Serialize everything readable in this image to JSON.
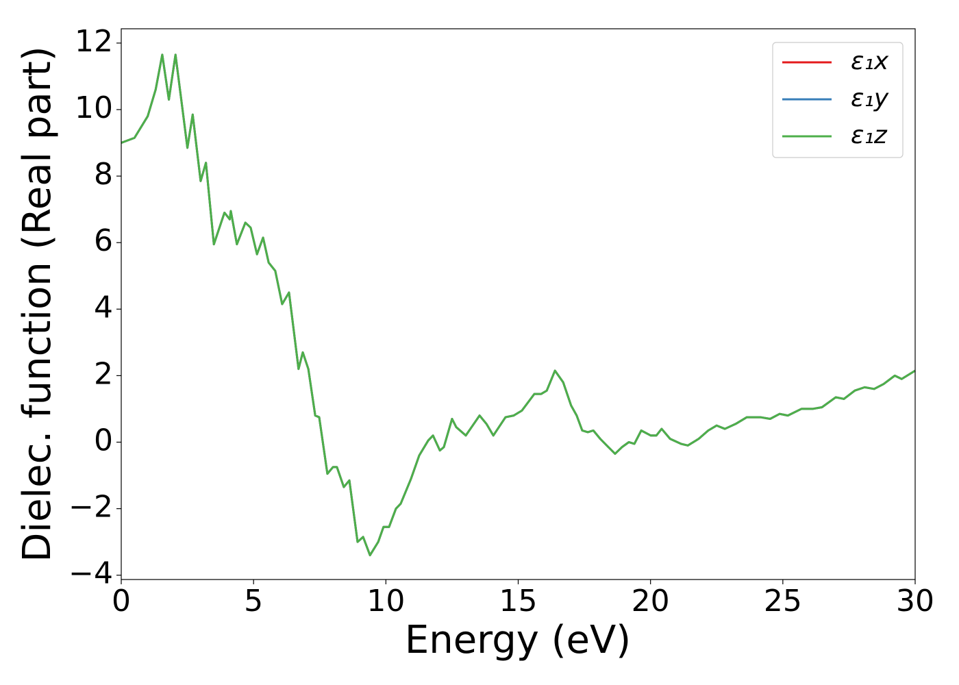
{
  "chart_data": {
    "type": "line",
    "xlabel": "Energy (eV)",
    "ylabel": "Dielec. function (Real part)",
    "x": [
      0,
      0.5,
      1.0,
      1.3,
      1.55,
      1.8,
      2.05,
      2.3,
      2.5,
      2.7,
      3.0,
      3.2,
      3.5,
      3.9,
      4.1,
      4.14,
      4.37,
      4.69,
      4.89,
      5.13,
      5.36,
      5.57,
      5.82,
      6.08,
      6.34,
      6.7,
      6.86,
      7.07,
      7.33,
      7.48,
      7.79,
      8.0,
      8.15,
      8.41,
      8.62,
      8.93,
      9.14,
      9.4,
      9.71,
      9.91,
      10.12,
      10.38,
      10.56,
      10.95,
      11.26,
      11.6,
      11.78,
      12.04,
      12.19,
      12.5,
      12.66,
      13.02,
      13.28,
      13.54,
      13.8,
      14.06,
      14.52,
      14.83,
      15.14,
      15.61,
      15.87,
      16.08,
      16.39,
      16.7,
      17.0,
      17.21,
      17.42,
      17.63,
      17.84,
      18.1,
      18.41,
      18.66,
      18.92,
      19.18,
      19.39,
      19.65,
      20.01,
      20.22,
      20.42,
      20.74,
      21.15,
      21.41,
      21.82,
      22.18,
      22.5,
      22.81,
      23.22,
      23.64,
      24.15,
      24.52,
      24.88,
      25.19,
      25.7,
      26.12,
      26.48,
      27.0,
      27.31,
      27.72,
      28.09,
      28.45,
      28.81,
      29.23,
      29.49,
      30
    ],
    "series": [
      {
        "name": "ε₁x",
        "color": "#e41a1c",
        "values": [
          9.0,
          9.15,
          9.8,
          10.6,
          11.65,
          10.3,
          11.65,
          10.1,
          8.85,
          9.85,
          7.85,
          8.4,
          5.95,
          6.9,
          6.7,
          6.95,
          5.95,
          6.6,
          6.45,
          5.65,
          6.15,
          5.4,
          5.15,
          4.15,
          4.5,
          2.2,
          2.7,
          2.2,
          0.8,
          0.75,
          -0.95,
          -0.75,
          -0.75,
          -1.35,
          -1.15,
          -3.0,
          -2.85,
          -3.4,
          -3.0,
          -2.55,
          -2.55,
          -2.0,
          -1.85,
          -1.1,
          -0.4,
          0.05,
          0.2,
          -0.25,
          -0.15,
          0.7,
          0.45,
          0.2,
          0.5,
          0.8,
          0.55,
          0.2,
          0.75,
          0.8,
          0.95,
          1.45,
          1.45,
          1.55,
          2.15,
          1.8,
          1.1,
          0.8,
          0.35,
          0.3,
          0.35,
          0.1,
          -0.15,
          -0.35,
          -0.15,
          0.0,
          -0.05,
          0.35,
          0.2,
          0.2,
          0.4,
          0.1,
          -0.05,
          -0.1,
          0.1,
          0.35,
          0.5,
          0.4,
          0.55,
          0.75,
          0.75,
          0.7,
          0.85,
          0.8,
          1.0,
          1.0,
          1.05,
          1.35,
          1.3,
          1.55,
          1.65,
          1.6,
          1.75,
          2.0,
          1.9,
          2.15
        ]
      },
      {
        "name": "ε₁y",
        "color": "#377eb8",
        "values": [
          9.0,
          9.15,
          9.8,
          10.6,
          11.65,
          10.3,
          11.65,
          10.1,
          8.85,
          9.85,
          7.85,
          8.4,
          5.95,
          6.9,
          6.7,
          6.95,
          5.95,
          6.6,
          6.45,
          5.65,
          6.15,
          5.4,
          5.15,
          4.15,
          4.5,
          2.2,
          2.7,
          2.2,
          0.8,
          0.75,
          -0.95,
          -0.75,
          -0.75,
          -1.35,
          -1.15,
          -3.0,
          -2.85,
          -3.4,
          -3.0,
          -2.55,
          -2.55,
          -2.0,
          -1.85,
          -1.1,
          -0.4,
          0.05,
          0.2,
          -0.25,
          -0.15,
          0.7,
          0.45,
          0.2,
          0.5,
          0.8,
          0.55,
          0.2,
          0.75,
          0.8,
          0.95,
          1.45,
          1.45,
          1.55,
          2.15,
          1.8,
          1.1,
          0.8,
          0.35,
          0.3,
          0.35,
          0.1,
          -0.15,
          -0.35,
          -0.15,
          0.0,
          -0.05,
          0.35,
          0.2,
          0.2,
          0.4,
          0.1,
          -0.05,
          -0.1,
          0.1,
          0.35,
          0.5,
          0.4,
          0.55,
          0.75,
          0.75,
          0.7,
          0.85,
          0.8,
          1.0,
          1.0,
          1.05,
          1.35,
          1.3,
          1.55,
          1.65,
          1.6,
          1.75,
          2.0,
          1.9,
          2.15
        ]
      },
      {
        "name": "ε₁z",
        "color": "#4daf4a",
        "values": [
          9.0,
          9.15,
          9.8,
          10.6,
          11.65,
          10.3,
          11.65,
          10.1,
          8.85,
          9.85,
          7.85,
          8.4,
          5.95,
          6.9,
          6.7,
          6.95,
          5.95,
          6.6,
          6.45,
          5.65,
          6.15,
          5.4,
          5.15,
          4.15,
          4.5,
          2.2,
          2.7,
          2.2,
          0.8,
          0.75,
          -0.95,
          -0.75,
          -0.75,
          -1.35,
          -1.15,
          -3.0,
          -2.85,
          -3.4,
          -3.0,
          -2.55,
          -2.55,
          -2.0,
          -1.85,
          -1.1,
          -0.4,
          0.05,
          0.2,
          -0.25,
          -0.15,
          0.7,
          0.45,
          0.2,
          0.5,
          0.8,
          0.55,
          0.2,
          0.75,
          0.8,
          0.95,
          1.45,
          1.45,
          1.55,
          2.15,
          1.8,
          1.1,
          0.8,
          0.35,
          0.3,
          0.35,
          0.1,
          -0.15,
          -0.35,
          -0.15,
          0.0,
          -0.05,
          0.35,
          0.2,
          0.2,
          0.4,
          0.1,
          -0.05,
          -0.1,
          0.1,
          0.35,
          0.5,
          0.4,
          0.55,
          0.75,
          0.75,
          0.7,
          0.85,
          0.8,
          1.0,
          1.0,
          1.05,
          1.35,
          1.3,
          1.55,
          1.65,
          1.6,
          1.75,
          2.0,
          1.9,
          2.15
        ]
      }
    ],
    "xlim": [
      0,
      30
    ],
    "xticks": [
      0,
      5,
      10,
      15,
      20,
      25,
      30
    ],
    "ylim": [
      -4.13,
      12.43
    ],
    "yticks": [
      {
        "value": -4,
        "label": "−4"
      },
      {
        "value": -2,
        "label": "−2"
      },
      0,
      2,
      4,
      6,
      8,
      10,
      12
    ],
    "grid": false,
    "legend": "upper right"
  }
}
